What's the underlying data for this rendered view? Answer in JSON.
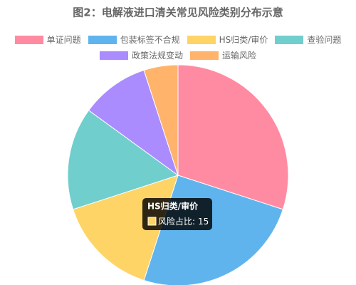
{
  "chart_data": {
    "type": "pie",
    "title": "图2：电解液进口清关常见风险类别分布示意",
    "categories": [
      "单证问题",
      "包装标签不合规",
      "HS归类/审价",
      "查验问题",
      "政策法规变动",
      "运输风险"
    ],
    "values": [
      30,
      25,
      15,
      15,
      10,
      5
    ],
    "colors": [
      "#ff8ba2",
      "#60b4ee",
      "#ffd466",
      "#70cecd",
      "#aa8cff",
      "#ffb36b"
    ],
    "tooltip": {
      "index": 2,
      "title": "HS归类/审价",
      "label": "风险占比:"
    }
  }
}
